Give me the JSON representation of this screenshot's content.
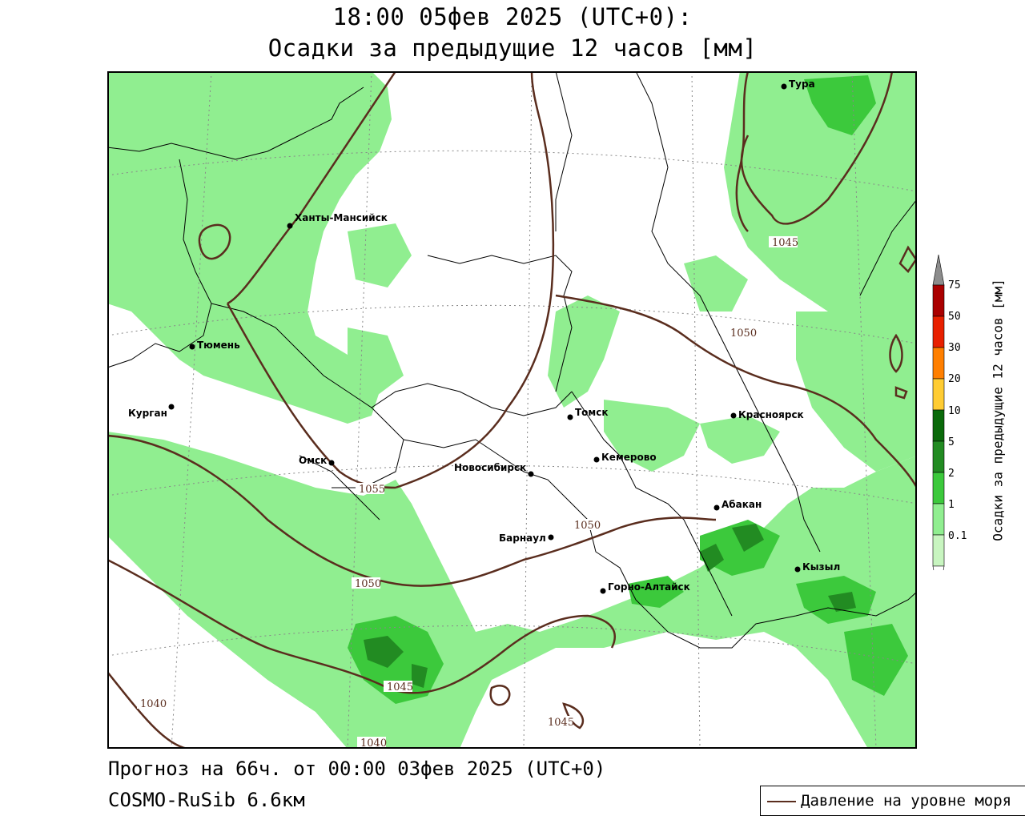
{
  "header": {
    "line1": "18:00 05фев 2025 (UTC+0):",
    "line2": "Осадки за предыдущие 12 часов [мм]"
  },
  "footer": {
    "forecast": "Прогноз на 66ч. от 00:00 03фев 2025 (UTC+0)",
    "model": "COSMO-RuSib 6.6км"
  },
  "legend": {
    "pressure_label": "Давление на уровне моря",
    "pressure_color": "#5a2d1e"
  },
  "colorbar": {
    "title": "Осадки за предыдущие 12 часов [мм]",
    "ticks": [
      "0.1",
      "1",
      "2",
      "5",
      "10",
      "20",
      "30",
      "50",
      "75"
    ],
    "colors": [
      "#c8f5c0",
      "#90ee90",
      "#3cc93c",
      "#228b22",
      "#0a6a0a",
      "#ffcc33",
      "#ff7f00",
      "#e82000",
      "#aa0000",
      "#8c8c8c"
    ]
  },
  "cities": [
    {
      "name": "Тура"
    },
    {
      "name": "Ханты-Мансийск"
    },
    {
      "name": "Тюмень"
    },
    {
      "name": "Курган"
    },
    {
      "name": "Омск"
    },
    {
      "name": "Томск"
    },
    {
      "name": "Красноярск"
    },
    {
      "name": "Кемерово"
    },
    {
      "name": "Новосибирск"
    },
    {
      "name": "Абакан"
    },
    {
      "name": "Барнаул"
    },
    {
      "name": "Кызыл"
    },
    {
      "name": "Горно-Алтайск"
    }
  ],
  "isobars": [
    "1045",
    "1050",
    "1055",
    "1050",
    "1050",
    "1045",
    "1040",
    "1040",
    "1045"
  ]
}
